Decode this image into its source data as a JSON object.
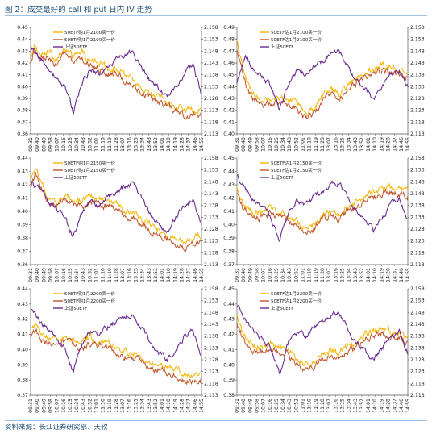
{
  "figure": {
    "title": "图 2：成交最好的 call 和 put 日内 IV 走势",
    "source": "资料来源：长江证券研究部、天软"
  },
  "colors": {
    "sell": "#f5b400",
    "buy": "#c0542a",
    "index": "#6a2c91",
    "axis": "#555555"
  },
  "time_labels": [
    "09:31",
    "09:40",
    "09:49",
    "09:58",
    "10:07",
    "10:16",
    "10:25",
    "10:34",
    "10:43",
    "10:52",
    "11:01",
    "11:10",
    "11:19",
    "11:28",
    "13:07",
    "13:16",
    "13:25",
    "13:34",
    "13:43",
    "13:52",
    "14:01",
    "14:10",
    "14:19",
    "14:28",
    "14:37",
    "14:46",
    "14:55"
  ],
  "chart_data": [
    {
      "type": "line",
      "strike": "2100",
      "option": "call",
      "series": [
        {
          "name": "50ETF购1月2100卖一价",
          "role": "sell"
        },
        {
          "name": "50ETF购1月2100买一价",
          "role": "buy"
        },
        {
          "name": "上证50ETF",
          "role": "index"
        }
      ],
      "ylim": [
        0.36,
        0.45
      ],
      "yticks": [
        "0.36",
        "0.37",
        "0.38",
        "0.39",
        "0.40",
        "0.41",
        "0.42",
        "0.43",
        "0.44",
        "0.45"
      ],
      "y2lim": [
        2.113,
        2.158
      ],
      "y2ticks": [
        "2.113",
        "2.118",
        "2.123",
        "2.128",
        "2.133",
        "2.138",
        "2.143",
        "2.148",
        "2.153",
        "2.158"
      ],
      "iv_path": [
        [
          0,
          0.42
        ],
        [
          0.02,
          0.433
        ],
        [
          0.05,
          0.425
        ],
        [
          0.1,
          0.428
        ],
        [
          0.15,
          0.419
        ],
        [
          0.2,
          0.43
        ],
        [
          0.25,
          0.422
        ],
        [
          0.3,
          0.426
        ],
        [
          0.35,
          0.419
        ],
        [
          0.4,
          0.418
        ],
        [
          0.45,
          0.412
        ],
        [
          0.5,
          0.414
        ],
        [
          0.55,
          0.406
        ],
        [
          0.6,
          0.403
        ],
        [
          0.65,
          0.397
        ],
        [
          0.7,
          0.392
        ],
        [
          0.75,
          0.389
        ],
        [
          0.8,
          0.385
        ],
        [
          0.85,
          0.381
        ],
        [
          0.9,
          0.378
        ],
        [
          0.95,
          0.376
        ],
        [
          1,
          0.38
        ]
      ],
      "index_path": [
        [
          0,
          2.15
        ],
        [
          0.05,
          2.145
        ],
        [
          0.1,
          2.14
        ],
        [
          0.15,
          2.137
        ],
        [
          0.2,
          2.133
        ],
        [
          0.25,
          2.122
        ],
        [
          0.3,
          2.135
        ],
        [
          0.35,
          2.14
        ],
        [
          0.4,
          2.138
        ],
        [
          0.45,
          2.142
        ],
        [
          0.5,
          2.144
        ],
        [
          0.55,
          2.146
        ],
        [
          0.6,
          2.147
        ],
        [
          0.65,
          2.141
        ],
        [
          0.7,
          2.135
        ],
        [
          0.75,
          2.132
        ],
        [
          0.8,
          2.128
        ],
        [
          0.85,
          2.133
        ],
        [
          0.9,
          2.138
        ],
        [
          0.95,
          2.142
        ],
        [
          1,
          2.13
        ]
      ]
    },
    {
      "type": "line",
      "strike": "2100",
      "option": "put",
      "series": [
        {
          "name": "50ETF沽1月2100卖一价",
          "role": "sell"
        },
        {
          "name": "50ETF沽1月2100买一价",
          "role": "buy"
        },
        {
          "name": "上证50ETF",
          "role": "index"
        }
      ],
      "ylim": [
        0.4,
        0.49
      ],
      "yticks": [
        "0.40",
        "0.41",
        "0.42",
        "0.43",
        "0.44",
        "0.45",
        "0.46",
        "0.47",
        "0.48",
        "0.49"
      ],
      "y2lim": [
        2.113,
        2.158
      ],
      "y2ticks": [
        "2.113",
        "2.118",
        "2.123",
        "2.128",
        "2.133",
        "2.138",
        "2.143",
        "2.148",
        "2.153",
        "2.158"
      ],
      "iv_path": [
        [
          0,
          0.475
        ],
        [
          0.03,
          0.455
        ],
        [
          0.06,
          0.44
        ],
        [
          0.1,
          0.43
        ],
        [
          0.15,
          0.425
        ],
        [
          0.2,
          0.427
        ],
        [
          0.25,
          0.428
        ],
        [
          0.3,
          0.426
        ],
        [
          0.35,
          0.423
        ],
        [
          0.4,
          0.415
        ],
        [
          0.45,
          0.418
        ],
        [
          0.5,
          0.43
        ],
        [
          0.55,
          0.435
        ],
        [
          0.6,
          0.43
        ],
        [
          0.65,
          0.44
        ],
        [
          0.7,
          0.445
        ],
        [
          0.75,
          0.45
        ],
        [
          0.8,
          0.452
        ],
        [
          0.85,
          0.455
        ],
        [
          0.9,
          0.455
        ],
        [
          0.95,
          0.452
        ],
        [
          1,
          0.45
        ]
      ],
      "index_path": [
        [
          0,
          2.135
        ],
        [
          0.05,
          2.145
        ],
        [
          0.1,
          2.14
        ],
        [
          0.15,
          2.137
        ],
        [
          0.2,
          2.133
        ],
        [
          0.25,
          2.123
        ],
        [
          0.3,
          2.135
        ],
        [
          0.35,
          2.14
        ],
        [
          0.4,
          2.138
        ],
        [
          0.45,
          2.142
        ],
        [
          0.5,
          2.144
        ],
        [
          0.55,
          2.147
        ],
        [
          0.6,
          2.148
        ],
        [
          0.65,
          2.141
        ],
        [
          0.7,
          2.135
        ],
        [
          0.75,
          2.132
        ],
        [
          0.8,
          2.128
        ],
        [
          0.85,
          2.133
        ],
        [
          0.9,
          2.138
        ],
        [
          0.95,
          2.14
        ],
        [
          1,
          2.133
        ]
      ]
    },
    {
      "type": "line",
      "strike": "2150",
      "option": "call",
      "series": [
        {
          "name": "50ETF购1月2150卖一价",
          "role": "sell"
        },
        {
          "name": "50ETF购1月2150买一价",
          "role": "buy"
        },
        {
          "name": "上证50ETF",
          "role": "index"
        }
      ],
      "ylim": [
        0.36,
        0.44
      ],
      "yticks": [
        "0.36",
        "0.37",
        "0.38",
        "0.39",
        "0.40",
        "0.41",
        "0.42",
        "0.43",
        "0.44"
      ],
      "y2lim": [
        2.113,
        2.158
      ],
      "y2ticks": [
        "2.113",
        "2.118",
        "2.123",
        "2.128",
        "2.133",
        "2.138",
        "2.143",
        "2.148",
        "2.153",
        "2.158"
      ],
      "iv_path": [
        [
          0,
          0.42
        ],
        [
          0.03,
          0.43
        ],
        [
          0.06,
          0.418
        ],
        [
          0.1,
          0.41
        ],
        [
          0.15,
          0.405
        ],
        [
          0.2,
          0.41
        ],
        [
          0.25,
          0.407
        ],
        [
          0.3,
          0.405
        ],
        [
          0.35,
          0.41
        ],
        [
          0.4,
          0.407
        ],
        [
          0.45,
          0.405
        ],
        [
          0.5,
          0.403
        ],
        [
          0.55,
          0.398
        ],
        [
          0.6,
          0.396
        ],
        [
          0.65,
          0.392
        ],
        [
          0.7,
          0.387
        ],
        [
          0.75,
          0.383
        ],
        [
          0.8,
          0.38
        ],
        [
          0.85,
          0.376
        ],
        [
          0.9,
          0.374
        ],
        [
          0.95,
          0.377
        ],
        [
          1,
          0.38
        ]
      ],
      "index_path": [
        [
          0,
          2.148
        ],
        [
          0.05,
          2.145
        ],
        [
          0.1,
          2.14
        ],
        [
          0.15,
          2.137
        ],
        [
          0.2,
          2.133
        ],
        [
          0.25,
          2.125
        ],
        [
          0.3,
          2.135
        ],
        [
          0.35,
          2.14
        ],
        [
          0.4,
          2.138
        ],
        [
          0.45,
          2.142
        ],
        [
          0.5,
          2.144
        ],
        [
          0.55,
          2.146
        ],
        [
          0.6,
          2.147
        ],
        [
          0.65,
          2.141
        ],
        [
          0.7,
          2.135
        ],
        [
          0.75,
          2.131
        ],
        [
          0.8,
          2.127
        ],
        [
          0.85,
          2.133
        ],
        [
          0.9,
          2.138
        ],
        [
          0.95,
          2.14
        ],
        [
          1,
          2.13
        ]
      ]
    },
    {
      "type": "line",
      "strike": "2150",
      "option": "put",
      "series": [
        {
          "name": "50ETF沽1月2150卖一价",
          "role": "sell"
        },
        {
          "name": "50ETF沽1月2150买一价",
          "role": "buy"
        },
        {
          "name": "上证50ETF",
          "role": "index"
        }
      ],
      "ylim": [
        0.37,
        0.45
      ],
      "yticks": [
        "0.37",
        "0.38",
        "0.39",
        "0.40",
        "0.41",
        "0.42",
        "0.43",
        "0.44",
        "0.45"
      ],
      "y2lim": [
        2.113,
        2.158
      ],
      "y2ticks": [
        "2.113",
        "2.118",
        "2.123",
        "2.128",
        "2.133",
        "2.138",
        "2.143",
        "2.148",
        "2.153",
        "2.158"
      ],
      "iv_path": [
        [
          0,
          0.425
        ],
        [
          0.03,
          0.415
        ],
        [
          0.06,
          0.41
        ],
        [
          0.1,
          0.405
        ],
        [
          0.15,
          0.408
        ],
        [
          0.2,
          0.41
        ],
        [
          0.25,
          0.407
        ],
        [
          0.3,
          0.405
        ],
        [
          0.35,
          0.4
        ],
        [
          0.4,
          0.395
        ],
        [
          0.45,
          0.398
        ],
        [
          0.5,
          0.405
        ],
        [
          0.55,
          0.408
        ],
        [
          0.6,
          0.405
        ],
        [
          0.65,
          0.412
        ],
        [
          0.7,
          0.415
        ],
        [
          0.75,
          0.42
        ],
        [
          0.8,
          0.422
        ],
        [
          0.85,
          0.425
        ],
        [
          0.9,
          0.426
        ],
        [
          0.95,
          0.424
        ],
        [
          1,
          0.423
        ]
      ],
      "index_path": [
        [
          0,
          2.15
        ],
        [
          0.05,
          2.145
        ],
        [
          0.1,
          2.14
        ],
        [
          0.15,
          2.137
        ],
        [
          0.2,
          2.133
        ],
        [
          0.25,
          2.123
        ],
        [
          0.3,
          2.135
        ],
        [
          0.35,
          2.14
        ],
        [
          0.4,
          2.138
        ],
        [
          0.45,
          2.142
        ],
        [
          0.5,
          2.144
        ],
        [
          0.55,
          2.147
        ],
        [
          0.6,
          2.148
        ],
        [
          0.65,
          2.141
        ],
        [
          0.7,
          2.135
        ],
        [
          0.75,
          2.132
        ],
        [
          0.8,
          2.128
        ],
        [
          0.85,
          2.133
        ],
        [
          0.9,
          2.138
        ],
        [
          0.95,
          2.14
        ],
        [
          1,
          2.132
        ]
      ]
    },
    {
      "type": "line",
      "strike": "2200",
      "option": "call",
      "series": [
        {
          "name": "50ETF购1月2200卖一价",
          "role": "sell"
        },
        {
          "name": "50ETF购1月2200买一价",
          "role": "buy"
        },
        {
          "name": "上证50ETF",
          "role": "index"
        }
      ],
      "ylim": [
        0.37,
        0.44
      ],
      "yticks": [
        "0.37",
        "0.38",
        "0.39",
        "0.40",
        "0.41",
        "0.42",
        "0.43",
        "0.44"
      ],
      "y2lim": [
        2.113,
        2.158
      ],
      "y2ticks": [
        "2.113",
        "2.118",
        "2.123",
        "2.128",
        "2.133",
        "2.138",
        "2.143",
        "2.148",
        "2.153",
        "2.158"
      ],
      "iv_path": [
        [
          0,
          0.41
        ],
        [
          0.03,
          0.415
        ],
        [
          0.06,
          0.408
        ],
        [
          0.1,
          0.405
        ],
        [
          0.15,
          0.405
        ],
        [
          0.2,
          0.407
        ],
        [
          0.25,
          0.405
        ],
        [
          0.3,
          0.403
        ],
        [
          0.35,
          0.406
        ],
        [
          0.4,
          0.404
        ],
        [
          0.45,
          0.403
        ],
        [
          0.5,
          0.4
        ],
        [
          0.55,
          0.397
        ],
        [
          0.6,
          0.396
        ],
        [
          0.65,
          0.394
        ],
        [
          0.7,
          0.39
        ],
        [
          0.75,
          0.388
        ],
        [
          0.8,
          0.386
        ],
        [
          0.85,
          0.384
        ],
        [
          0.9,
          0.382
        ],
        [
          0.95,
          0.381
        ],
        [
          1,
          0.382
        ]
      ],
      "index_path": [
        [
          0,
          2.15
        ],
        [
          0.05,
          2.145
        ],
        [
          0.1,
          2.14
        ],
        [
          0.15,
          2.137
        ],
        [
          0.2,
          2.133
        ],
        [
          0.25,
          2.123
        ],
        [
          0.3,
          2.135
        ],
        [
          0.35,
          2.14
        ],
        [
          0.4,
          2.138
        ],
        [
          0.45,
          2.142
        ],
        [
          0.5,
          2.144
        ],
        [
          0.55,
          2.146
        ],
        [
          0.6,
          2.147
        ],
        [
          0.65,
          2.141
        ],
        [
          0.7,
          2.135
        ],
        [
          0.75,
          2.131
        ],
        [
          0.8,
          2.128
        ],
        [
          0.85,
          2.133
        ],
        [
          0.9,
          2.138
        ],
        [
          0.95,
          2.14
        ],
        [
          1,
          2.13
        ]
      ]
    },
    {
      "type": "line",
      "strike": "2200",
      "option": "put",
      "series": [
        {
          "name": "50ETF沽1月2200卖一价",
          "role": "sell"
        },
        {
          "name": "50ETF沽1月2200买一价",
          "role": "buy"
        },
        {
          "name": "上证50ETF",
          "role": "index"
        }
      ],
      "ylim": [
        0.38,
        0.45
      ],
      "yticks": [
        "0.38",
        "0.39",
        "0.40",
        "0.41",
        "0.42",
        "0.43",
        "0.44",
        "0.45"
      ],
      "y2lim": [
        2.113,
        2.158
      ],
      "y2ticks": [
        "2.113",
        "2.118",
        "2.123",
        "2.128",
        "2.133",
        "2.138",
        "2.143",
        "2.148",
        "2.153",
        "2.158"
      ],
      "iv_path": [
        [
          0,
          0.43
        ],
        [
          0.03,
          0.42
        ],
        [
          0.06,
          0.415
        ],
        [
          0.1,
          0.41
        ],
        [
          0.15,
          0.41
        ],
        [
          0.2,
          0.412
        ],
        [
          0.25,
          0.41
        ],
        [
          0.3,
          0.408
        ],
        [
          0.35,
          0.402
        ],
        [
          0.4,
          0.398
        ],
        [
          0.45,
          0.4
        ],
        [
          0.5,
          0.405
        ],
        [
          0.55,
          0.408
        ],
        [
          0.6,
          0.405
        ],
        [
          0.65,
          0.41
        ],
        [
          0.7,
          0.413
        ],
        [
          0.75,
          0.418
        ],
        [
          0.8,
          0.42
        ],
        [
          0.85,
          0.422
        ],
        [
          0.9,
          0.42
        ],
        [
          0.95,
          0.418
        ],
        [
          1,
          0.416
        ]
      ],
      "index_path": [
        [
          0,
          2.15
        ],
        [
          0.05,
          2.145
        ],
        [
          0.1,
          2.14
        ],
        [
          0.15,
          2.137
        ],
        [
          0.2,
          2.133
        ],
        [
          0.25,
          2.123
        ],
        [
          0.3,
          2.135
        ],
        [
          0.35,
          2.14
        ],
        [
          0.4,
          2.138
        ],
        [
          0.45,
          2.142
        ],
        [
          0.5,
          2.144
        ],
        [
          0.55,
          2.147
        ],
        [
          0.6,
          2.148
        ],
        [
          0.65,
          2.141
        ],
        [
          0.7,
          2.135
        ],
        [
          0.75,
          2.132
        ],
        [
          0.8,
          2.128
        ],
        [
          0.85,
          2.133
        ],
        [
          0.9,
          2.138
        ],
        [
          0.95,
          2.14
        ],
        [
          1,
          2.131
        ]
      ]
    }
  ]
}
